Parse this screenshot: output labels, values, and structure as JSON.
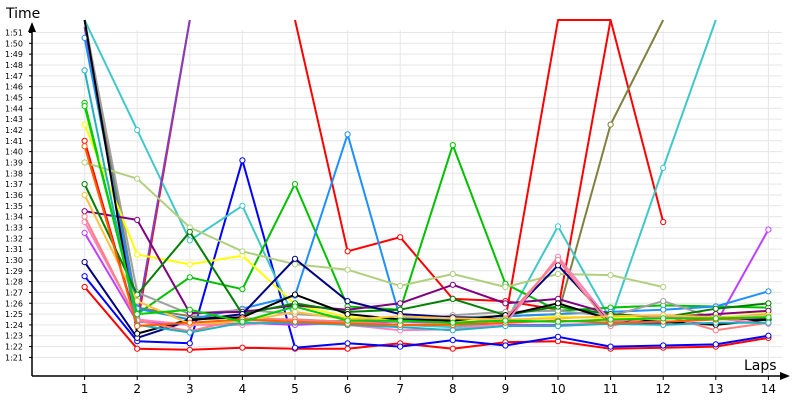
{
  "chart_data": {
    "type": "line",
    "title": "",
    "ylabel": "Time",
    "xlabel": "Laps",
    "x": [
      1,
      2,
      3,
      4,
      5,
      6,
      7,
      8,
      9,
      10,
      11,
      12,
      13,
      14
    ],
    "xlim": [
      0,
      14
    ],
    "ylim_seconds": [
      80,
      111
    ],
    "grid": true,
    "y_ticks": [
      "1:21",
      "1:22",
      "1:23",
      "1:24",
      "1:25",
      "1:26",
      "1:27",
      "1:28",
      "1:29",
      "1:30",
      "1:31",
      "1:32",
      "1:33",
      "1:34",
      "1:35",
      "1:36",
      "1:37",
      "1:38",
      "1:39",
      "1:40",
      "1:41",
      "1:42",
      "1:43",
      "1:44",
      "1:45",
      "1:46",
      "1:47",
      "1:48",
      "1:49",
      "1:50",
      "1:51"
    ],
    "series": [
      {
        "color": "#ff0000",
        "values": [
          87.5,
          81.8,
          81.7,
          81.9,
          81.8,
          81.8,
          82.3,
          81.8,
          82.4,
          82.5,
          81.8,
          81.9,
          82.0,
          82.8
        ]
      },
      {
        "color": "#0000ff",
        "values": [
          88.5,
          82.5,
          82.3,
          99.2,
          81.9,
          82.3,
          82.0,
          82.6,
          82.1,
          82.9,
          82.0,
          82.1,
          82.2,
          83.0
        ]
      },
      {
        "color": "#ff0000",
        "values": [
          101.0,
          84.0,
          116.0,
          null,
          116.0,
          90.8,
          92.1,
          86.4,
          86.2,
          85.4,
          116.0,
          null,
          null,
          null
        ]
      },
      {
        "color": "#ff0000",
        "values": [
          null,
          null,
          null,
          null,
          null,
          null,
          null,
          null,
          84.5,
          116.0,
          116.0,
          93.5,
          null,
          null
        ]
      },
      {
        "color": "#808040",
        "values": [
          116.0,
          85.6,
          84.8,
          84.6,
          84.2,
          84.4,
          84.5,
          84.7,
          84.8,
          85.0,
          102.5,
          116.0,
          null,
          null
        ]
      },
      {
        "color": "#40c8c8",
        "values": [
          116.0,
          102.0,
          91.8,
          95.0,
          84.5,
          84.3,
          84.0,
          83.8,
          84.2,
          93.1,
          84.5,
          98.5,
          116.0,
          null
        ]
      },
      {
        "color": "#00c000",
        "values": [
          104.5,
          85.0,
          88.4,
          87.3,
          97.0,
          85.7,
          85.4,
          100.6,
          87.8,
          85.3,
          85.6,
          85.8,
          85.7,
          85.6
        ]
      },
      {
        "color": "#8040c0",
        "values": [
          111.5,
          84.6,
          116.0,
          null,
          null,
          null,
          null,
          null,
          null,
          null,
          null,
          null,
          null,
          null
        ]
      },
      {
        "color": "#c040ff",
        "values": [
          92.5,
          84.3,
          84.0,
          84.2,
          84.0,
          84.2,
          84.3,
          84.2,
          84.0,
          84.0,
          84.1,
          84.3,
          84.1,
          92.8
        ]
      },
      {
        "color": "#1e90ff",
        "values": [
          110.5,
          85.5,
          84.5,
          85.5,
          86.7,
          101.6,
          84.6,
          84.6,
          84.8,
          85.0,
          85.2,
          85.4,
          85.7,
          87.1
        ]
      },
      {
        "color": "#a0a0a0",
        "values": [
          116.0,
          87.0,
          85.0,
          85.4,
          85.0,
          84.7,
          84.2,
          84.9,
          85.2,
          85.3,
          84.8,
          86.2,
          84.6,
          85.0
        ]
      },
      {
        "color": "#ffff00",
        "values": [
          102.5,
          90.5,
          89.6,
          90.4,
          85.9,
          84.7,
          84.5,
          84.3,
          84.4,
          84.8,
          84.6,
          84.8,
          85.0,
          85.2
        ]
      },
      {
        "color": "#b0d080",
        "values": [
          99.0,
          97.5,
          93.0,
          90.8,
          89.6,
          89.1,
          87.6,
          88.7,
          87.5,
          88.7,
          88.6,
          87.5,
          null,
          null
        ]
      },
      {
        "color": "#800080",
        "values": [
          94.5,
          93.7,
          85.1,
          85.2,
          85.8,
          85.4,
          86.0,
          87.7,
          86.0,
          86.4,
          85.0,
          84.7,
          85.0,
          85.3
        ]
      },
      {
        "color": "#008000",
        "values": [
          97.0,
          86.8,
          92.6,
          85.0,
          86.0,
          85.2,
          85.4,
          86.4,
          84.9,
          85.7,
          85.0,
          84.7,
          85.5,
          86.0
        ]
      },
      {
        "color": "#000080",
        "values": [
          89.8,
          82.8,
          84.4,
          85.0,
          90.1,
          86.2,
          85.0,
          84.7,
          84.5,
          89.5,
          84.3,
          84.2,
          84.6,
          84.5
        ]
      },
      {
        "color": "#000000",
        "values": [
          116.0,
          83.2,
          84.5,
          84.7,
          86.8,
          85.0,
          84.5,
          84.4,
          84.9,
          86.0,
          84.5,
          84.3,
          84.0,
          84.5
        ]
      },
      {
        "color": "#ff80c0",
        "values": [
          93.5,
          84.5,
          84.0,
          84.0,
          84.4,
          84.0,
          83.5,
          83.6,
          84.1,
          90.3,
          84.3,
          84.8,
          84.6,
          84.1
        ]
      },
      {
        "color": "#ff8080",
        "values": [
          94.0,
          84.4,
          83.4,
          84.6,
          84.5,
          84.3,
          84.0,
          84.1,
          84.6,
          90.0,
          83.9,
          84.9,
          83.5,
          84.2
        ]
      },
      {
        "color": "#ffc040",
        "values": [
          96.0,
          86.2,
          84.1,
          84.3,
          85.2,
          84.5,
          84.8,
          84.6,
          84.5,
          84.6,
          84.8,
          84.9,
          84.7,
          84.9
        ]
      },
      {
        "color": "#20b0c0",
        "values": [
          107.5,
          84.0,
          83.3,
          84.2,
          84.2,
          84.0,
          83.8,
          83.5,
          83.9,
          83.9,
          84.1,
          84.0,
          84.2,
          84.2
        ]
      },
      {
        "color": "#ff6000",
        "values": [
          100.5,
          83.9,
          84.2,
          84.5,
          84.3,
          84.1,
          84.0,
          84.0,
          84.2,
          84.4,
          84.2,
          84.3,
          84.5,
          84.7
        ]
      },
      {
        "color": "#00d000",
        "values": [
          104.2,
          85.0,
          85.4,
          84.3,
          85.7,
          84.4,
          84.4,
          84.2,
          84.4,
          84.3,
          84.5,
          84.6,
          84.6,
          84.7
        ]
      }
    ]
  }
}
